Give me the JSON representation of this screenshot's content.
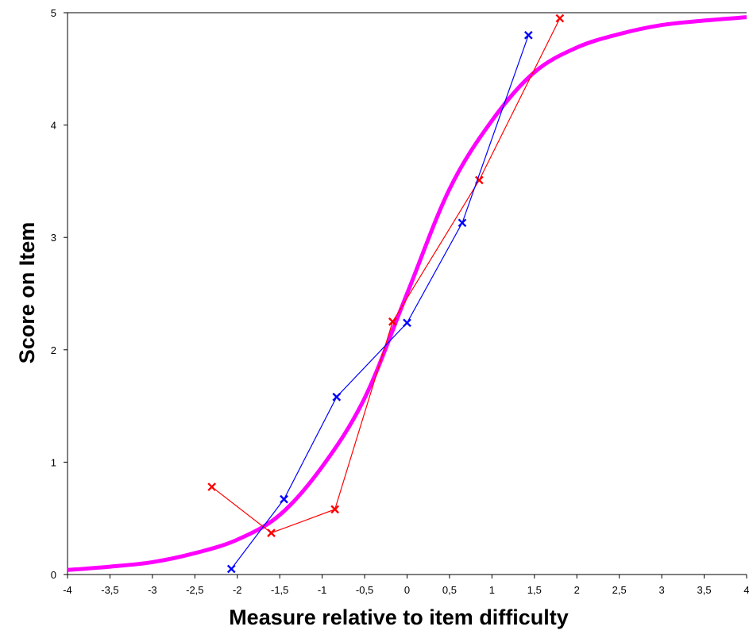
{
  "chart_data": {
    "type": "line",
    "title": "",
    "xlabel": "Measure relative to item difficulty",
    "ylabel": "Score on Item",
    "xlim": [
      -4,
      4
    ],
    "ylim": [
      0,
      5
    ],
    "grid": false,
    "legend": "none",
    "x_ticks": [
      -4,
      -3.5,
      -3,
      -2.5,
      -2,
      -1.5,
      -1,
      -0.5,
      0,
      0.5,
      1,
      1.5,
      2,
      2.5,
      3,
      3.5,
      4
    ],
    "x_tick_labels": [
      "-4",
      "-3,5",
      "-3",
      "-2,5",
      "-2",
      "-1,5",
      "-1",
      "-0,5",
      "0",
      "0,5",
      "1",
      "1,5",
      "2",
      "2,5",
      "3",
      "3,5",
      "4"
    ],
    "y_ticks": [
      0,
      1,
      2,
      3,
      4,
      5
    ],
    "y_tick_labels": [
      "0",
      "1",
      "2",
      "3",
      "4",
      "5"
    ],
    "curve": {
      "color": "#ff00ff",
      "points": [
        {
          "x": -4.0,
          "y": 0.04
        },
        {
          "x": -3.5,
          "y": 0.07
        },
        {
          "x": -3.0,
          "y": 0.11
        },
        {
          "x": -2.5,
          "y": 0.19
        },
        {
          "x": -2.0,
          "y": 0.31
        },
        {
          "x": -1.5,
          "y": 0.53
        },
        {
          "x": -1.0,
          "y": 0.96
        },
        {
          "x": -0.5,
          "y": 1.57
        },
        {
          "x": 0.0,
          "y": 2.5
        },
        {
          "x": 0.5,
          "y": 3.43
        },
        {
          "x": 1.0,
          "y": 4.04
        },
        {
          "x": 1.5,
          "y": 4.47
        },
        {
          "x": 2.0,
          "y": 4.69
        },
        {
          "x": 2.5,
          "y": 4.81
        },
        {
          "x": 3.0,
          "y": 4.89
        },
        {
          "x": 3.5,
          "y": 4.93
        },
        {
          "x": 4.0,
          "y": 4.96
        }
      ]
    },
    "series": [
      {
        "color": "#ff0000",
        "points": [
          {
            "x": -2.3,
            "y": 0.78
          },
          {
            "x": -1.6,
            "y": 0.37
          },
          {
            "x": -0.85,
            "y": 0.58
          },
          {
            "x": -0.17,
            "y": 2.25
          },
          {
            "x": 0.85,
            "y": 3.51
          },
          {
            "x": 1.8,
            "y": 4.95
          }
        ]
      },
      {
        "color": "#0000ff",
        "points": [
          {
            "x": -2.07,
            "y": 0.05
          },
          {
            "x": -1.45,
            "y": 0.67
          },
          {
            "x": -0.83,
            "y": 1.58
          },
          {
            "x": 0.0,
            "y": 2.24
          },
          {
            "x": 0.65,
            "y": 3.13
          },
          {
            "x": 1.43,
            "y": 4.8
          }
        ]
      }
    ]
  }
}
